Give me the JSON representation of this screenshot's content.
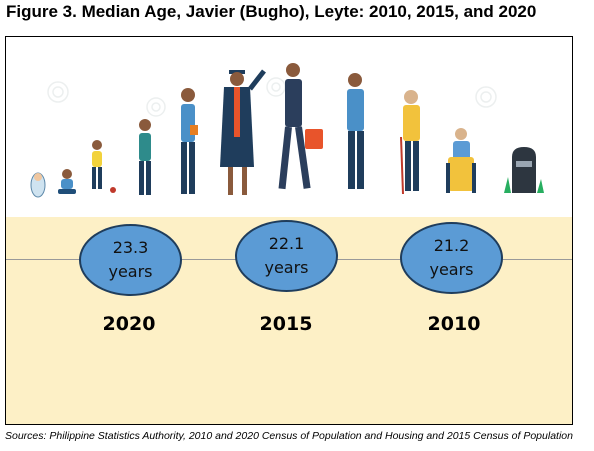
{
  "title": "Figure 3. Median Age, Javier (Bugho), Leyte: 2010, 2015, and 2020",
  "source": "Sources: Philippine Statistics Authority, 2010 and 2020 Census of Population and Housing and 2015 Census of Population",
  "colors": {
    "band": "#fdf0c6",
    "oval_fill": "#5b9bd5",
    "oval_border": "#1f3d5c",
    "line": "#999999"
  },
  "chart_data": {
    "type": "infographic",
    "unit": "years",
    "points": [
      {
        "year": "2020",
        "value": 23.3,
        "value_label": "23.3",
        "unit_label": "years"
      },
      {
        "year": "2015",
        "value": 22.1,
        "value_label": "22.1",
        "unit_label": "years"
      },
      {
        "year": "2010",
        "value": 21.2,
        "value_label": "21.2",
        "unit_label": "years"
      }
    ]
  },
  "illustration": {
    "icons": [
      "baby-icon",
      "toddler-icon",
      "child-icon",
      "boy-icon",
      "teen-icon",
      "graduate-icon",
      "businessman-icon",
      "man-icon",
      "elderly-man-icon",
      "elderly-seated-icon",
      "tombstone-icon"
    ]
  }
}
